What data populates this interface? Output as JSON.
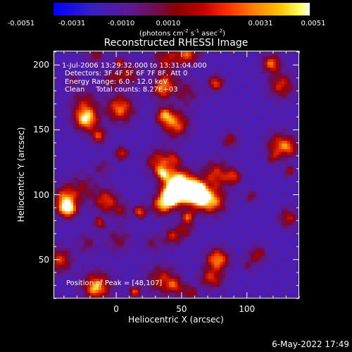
{
  "chart_data": {
    "type": "heatmap",
    "title": "Reconstructed RHESSI Image",
    "xlabel": "Heliocentric X (arcsec)",
    "ylabel": "Heliocentric Y (arcsec)",
    "xlim": [
      -48,
      140
    ],
    "ylim": [
      20,
      211
    ],
    "xticks": [
      0,
      50,
      100
    ],
    "yticks": [
      50,
      100,
      150,
      200
    ],
    "colorbar": {
      "ticks": [
        "-0.0051",
        "-0.0031",
        "-0.0010",
        "0.0010",
        "0.0031",
        "0.0051"
      ],
      "units_base": "(photons cm",
      "units_exp1": "-2",
      "units_mid": " s",
      "units_exp2": "-1",
      "units_mid2": " asec",
      "units_exp3": "-2",
      "units_end": ")",
      "min": -0.0051,
      "max": 0.0051,
      "colormap": [
        "#0000ff",
        "#5a1a9a",
        "#8b0000",
        "#ff3000",
        "#ffc000",
        "#ffffff"
      ]
    },
    "annotations": {
      "time": "1-Jul-2006 13:29:32.000 to 13:31:04.000",
      "detectors": "Detectors: 3F 4F 5F 6F 7F 8F, Att 0",
      "energy": "Energy Range: 6.0 - 12.0 keV",
      "method": "Clean     Total counts: 8.27E+03",
      "peak": "Position of Peak = [48,107]"
    },
    "peak": [
      48,
      107
    ]
  },
  "footer": {
    "date": "6-May-2022 17:49"
  }
}
